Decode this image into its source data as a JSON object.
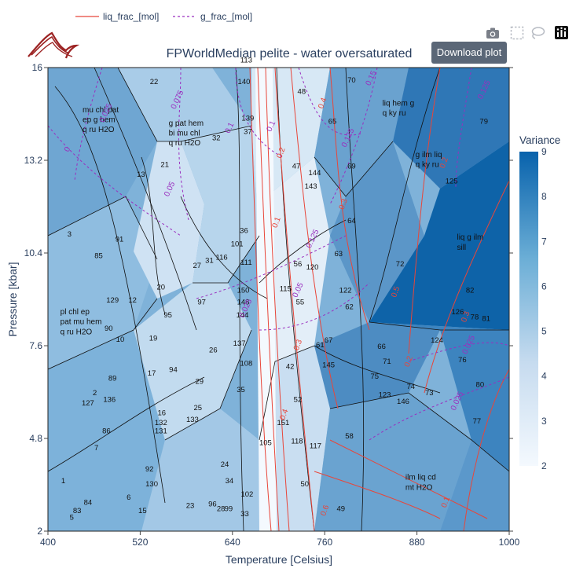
{
  "toolbar": {
    "download_label": "Download plot",
    "icons": [
      "camera-icon",
      "box-select-icon",
      "lasso-icon",
      "plotly-logo-icon"
    ]
  },
  "logo": {
    "icon": "mountain-logo-icon"
  },
  "colors": {
    "accent": "#5b6777",
    "liq": "#e8463a",
    "g": "#9a2fbf",
    "boundary": "#111111"
  },
  "chart_data": {
    "type": "heatmap",
    "title": "FPWorldMedian pelite - water oversaturated",
    "xlabel": "Temperature [Celsius]",
    "ylabel": "Pressure [kbar]",
    "xlim": [
      400,
      1000
    ],
    "ylim": [
      2,
      16
    ],
    "x_ticks": [
      "400",
      "520",
      "640",
      "760",
      "880",
      "1000"
    ],
    "x_tick_values": [
      400,
      520,
      640,
      760,
      880,
      1000
    ],
    "y_ticks": [
      "2",
      "4.8",
      "7.6",
      "10.4",
      "13.2",
      "16"
    ],
    "y_tick_values": [
      2,
      4.8,
      7.6,
      10.4,
      13.2,
      16
    ],
    "legend": {
      "placement": "top-left",
      "entries": [
        {
          "name": "liq_frac_[mol]",
          "style": "solid",
          "color": "#e8463a"
        },
        {
          "name": "g_frac_[mol]",
          "style": "dashed",
          "color": "#9a2fbf"
        }
      ]
    },
    "colorbar": {
      "title": "Variance",
      "min": 2,
      "max": 9,
      "ticks": [
        "2",
        "3",
        "4",
        "5",
        "6",
        "7",
        "8",
        "9"
      ],
      "tick_values": [
        2,
        3,
        4,
        5,
        6,
        7,
        8,
        9
      ]
    },
    "field_labels": [
      {
        "text": "mu chl pat",
        "x": 445,
        "y": 14.65
      },
      {
        "text": "ep g hem",
        "x": 445,
        "y": 14.35
      },
      {
        "text": "q ru H2O",
        "x": 445,
        "y": 14.05
      },
      {
        "text": "g pat hem",
        "x": 557,
        "y": 14.25
      },
      {
        "text": "bi mu chl",
        "x": 557,
        "y": 13.95
      },
      {
        "text": "q ru H2O",
        "x": 557,
        "y": 13.65
      },
      {
        "text": "liq hem g",
        "x": 835,
        "y": 14.85
      },
      {
        "text": "q ky ru",
        "x": 835,
        "y": 14.55
      },
      {
        "text": "g ilm liq",
        "x": 878,
        "y": 13.3
      },
      {
        "text": "q ky ru",
        "x": 878,
        "y": 13.0
      },
      {
        "text": "liq g ilm",
        "x": 932,
        "y": 10.8
      },
      {
        "text": "sill",
        "x": 932,
        "y": 10.5
      },
      {
        "text": "pl chl ep",
        "x": 416,
        "y": 8.55
      },
      {
        "text": "pat mu hem",
        "x": 416,
        "y": 8.25
      },
      {
        "text": "q ru H2O",
        "x": 416,
        "y": 7.95
      },
      {
        "text": "ilm liq cd",
        "x": 865,
        "y": 3.55
      },
      {
        "text": "mt H2O",
        "x": 865,
        "y": 3.25
      }
    ],
    "field_numbers": [
      {
        "text": "22",
        "x": 538,
        "y": 15.5
      },
      {
        "text": "113",
        "x": 658,
        "y": 16.15
      },
      {
        "text": "140",
        "x": 655,
        "y": 15.5
      },
      {
        "text": "48",
        "x": 730,
        "y": 15.2
      },
      {
        "text": "70",
        "x": 795,
        "y": 15.55
      },
      {
        "text": "139",
        "x": 660,
        "y": 14.4
      },
      {
        "text": "37",
        "x": 660,
        "y": 14.0
      },
      {
        "text": "65",
        "x": 770,
        "y": 14.3
      },
      {
        "text": "79",
        "x": 967,
        "y": 14.3
      },
      {
        "text": "32",
        "x": 619,
        "y": 13.8
      },
      {
        "text": "21",
        "x": 552,
        "y": 13.0
      },
      {
        "text": "13",
        "x": 521,
        "y": 12.7
      },
      {
        "text": "47",
        "x": 723,
        "y": 12.95
      },
      {
        "text": "69",
        "x": 795,
        "y": 12.95
      },
      {
        "text": "144",
        "x": 747,
        "y": 12.75
      },
      {
        "text": "143",
        "x": 742,
        "y": 12.35
      },
      {
        "text": "125",
        "x": 925,
        "y": 12.5
      },
      {
        "text": "64",
        "x": 795,
        "y": 11.3
      },
      {
        "text": "3",
        "x": 428,
        "y": 10.9
      },
      {
        "text": "91",
        "x": 493,
        "y": 10.75
      },
      {
        "text": "36",
        "x": 655,
        "y": 11.0
      },
      {
        "text": "101",
        "x": 646,
        "y": 10.6
      },
      {
        "text": "63",
        "x": 778,
        "y": 10.3
      },
      {
        "text": "72",
        "x": 858,
        "y": 10.0
      },
      {
        "text": "85",
        "x": 466,
        "y": 10.25
      },
      {
        "text": "31",
        "x": 610,
        "y": 10.1
      },
      {
        "text": "116",
        "x": 626,
        "y": 10.2
      },
      {
        "text": "111",
        "x": 658,
        "y": 10.05
      },
      {
        "text": "56",
        "x": 725,
        "y": 10.0
      },
      {
        "text": "120",
        "x": 744,
        "y": 9.9
      },
      {
        "text": "27",
        "x": 594,
        "y": 9.95
      },
      {
        "text": "20",
        "x": 547,
        "y": 9.3
      },
      {
        "text": "150",
        "x": 654,
        "y": 9.2
      },
      {
        "text": "115",
        "x": 709,
        "y": 9.25
      },
      {
        "text": "122",
        "x": 787,
        "y": 9.2
      },
      {
        "text": "82",
        "x": 949,
        "y": 9.2
      },
      {
        "text": "129",
        "x": 484,
        "y": 8.9
      },
      {
        "text": "12",
        "x": 510,
        "y": 8.9
      },
      {
        "text": "148",
        "x": 654,
        "y": 8.85
      },
      {
        "text": "55",
        "x": 728,
        "y": 8.85
      },
      {
        "text": "62",
        "x": 792,
        "y": 8.7
      },
      {
        "text": "97",
        "x": 600,
        "y": 8.85
      },
      {
        "text": "95",
        "x": 556,
        "y": 8.45
      },
      {
        "text": "144",
        "x": 653,
        "y": 8.45
      },
      {
        "text": "126",
        "x": 933,
        "y": 8.55
      },
      {
        "text": "78",
        "x": 955,
        "y": 8.4
      },
      {
        "text": "81",
        "x": 970,
        "y": 8.35
      },
      {
        "text": "90",
        "x": 479,
        "y": 8.05
      },
      {
        "text": "10",
        "x": 494,
        "y": 7.72
      },
      {
        "text": "19",
        "x": 537,
        "y": 7.75
      },
      {
        "text": "137",
        "x": 649,
        "y": 7.6
      },
      {
        "text": "124",
        "x": 906,
        "y": 7.7
      },
      {
        "text": "26",
        "x": 615,
        "y": 7.4
      },
      {
        "text": "61",
        "x": 754,
        "y": 7.55
      },
      {
        "text": "67",
        "x": 765,
        "y": 7.7
      },
      {
        "text": "66",
        "x": 834,
        "y": 7.5
      },
      {
        "text": "76",
        "x": 939,
        "y": 7.1
      },
      {
        "text": "108",
        "x": 658,
        "y": 7.0
      },
      {
        "text": "42",
        "x": 715,
        "y": 6.9
      },
      {
        "text": "145",
        "x": 765,
        "y": 6.95
      },
      {
        "text": "71",
        "x": 841,
        "y": 7.05
      },
      {
        "text": "94",
        "x": 563,
        "y": 6.8
      },
      {
        "text": "17",
        "x": 535,
        "y": 6.7
      },
      {
        "text": "89",
        "x": 484,
        "y": 6.55
      },
      {
        "text": "75",
        "x": 825,
        "y": 6.6
      },
      {
        "text": "74",
        "x": 872,
        "y": 6.3
      },
      {
        "text": "80",
        "x": 962,
        "y": 6.35
      },
      {
        "text": "29",
        "x": 597,
        "y": 6.45
      },
      {
        "text": "35",
        "x": 651,
        "y": 6.2
      },
      {
        "text": "2",
        "x": 461,
        "y": 6.1
      },
      {
        "text": "136",
        "x": 480,
        "y": 5.9
      },
      {
        "text": "127",
        "x": 452,
        "y": 5.8
      },
      {
        "text": "52",
        "x": 725,
        "y": 5.9
      },
      {
        "text": "123",
        "x": 838,
        "y": 6.05
      },
      {
        "text": "73",
        "x": 896,
        "y": 6.1
      },
      {
        "text": "146",
        "x": 862,
        "y": 5.85
      },
      {
        "text": "25",
        "x": 595,
        "y": 5.65
      },
      {
        "text": "16",
        "x": 548,
        "y": 5.5
      },
      {
        "text": "133",
        "x": 588,
        "y": 5.3
      },
      {
        "text": "132",
        "x": 547,
        "y": 5.2
      },
      {
        "text": "151",
        "x": 706,
        "y": 5.2
      },
      {
        "text": "77",
        "x": 958,
        "y": 5.25
      },
      {
        "text": "86",
        "x": 476,
        "y": 4.95
      },
      {
        "text": "131",
        "x": 547,
        "y": 4.95
      },
      {
        "text": "58",
        "x": 792,
        "y": 4.8
      },
      {
        "text": "105",
        "x": 683,
        "y": 4.6
      },
      {
        "text": "7",
        "x": 463,
        "y": 4.45
      },
      {
        "text": "118",
        "x": 724,
        "y": 4.65
      },
      {
        "text": "117",
        "x": 748,
        "y": 4.5
      },
      {
        "text": "24",
        "x": 630,
        "y": 3.95
      },
      {
        "text": "92",
        "x": 532,
        "y": 3.8
      },
      {
        "text": "34",
        "x": 636,
        "y": 3.45
      },
      {
        "text": "130",
        "x": 535,
        "y": 3.35
      },
      {
        "text": "1",
        "x": 420,
        "y": 3.45
      },
      {
        "text": "6",
        "x": 505,
        "y": 2.95
      },
      {
        "text": "50",
        "x": 734,
        "y": 3.35
      },
      {
        "text": "84",
        "x": 452,
        "y": 2.8
      },
      {
        "text": "102",
        "x": 659,
        "y": 3.05
      },
      {
        "text": "23",
        "x": 585,
        "y": 2.7
      },
      {
        "text": "96",
        "x": 614,
        "y": 2.75
      },
      {
        "text": "83",
        "x": 438,
        "y": 2.55
      },
      {
        "text": "15",
        "x": 523,
        "y": 2.55
      },
      {
        "text": "28",
        "x": 625,
        "y": 2.6
      },
      {
        "text": "99",
        "x": 635,
        "y": 2.6
      },
      {
        "text": "49",
        "x": 781,
        "y": 2.6
      },
      {
        "text": "5",
        "x": 431,
        "y": 2.35
      },
      {
        "text": "33",
        "x": 656,
        "y": 2.45
      }
    ],
    "liq_contour_labels": [
      {
        "text": "0.4",
        "x": 760,
        "y": 14.9
      },
      {
        "text": "0.2",
        "x": 706,
        "y": 13.4
      },
      {
        "text": "0.3",
        "x": 787,
        "y": 11.85
      },
      {
        "text": "0.1",
        "x": 700,
        "y": 11.3
      },
      {
        "text": "0.5",
        "x": 855,
        "y": 9.2
      },
      {
        "text": "0.3",
        "x": 728,
        "y": 7.6
      },
      {
        "text": "0.2",
        "x": 872,
        "y": 7.1
      },
      {
        "text": "0.4",
        "x": 710,
        "y": 5.5
      },
      {
        "text": "0.1",
        "x": 920,
        "y": 2.85
      },
      {
        "text": "0.6",
        "x": 763,
        "y": 2.6
      },
      {
        "text": "0.2",
        "x": 918,
        "y": 13.1
      },
      {
        "text": "0.3",
        "x": 946,
        "y": 8.45
      }
    ],
    "g_contour_labels": [
      {
        "text": "0.025",
        "x": 478,
        "y": 14.6
      },
      {
        "text": "0.075",
        "x": 571,
        "y": 15.0
      },
      {
        "text": "0.1",
        "x": 639,
        "y": 14.15
      },
      {
        "text": "0.125",
        "x": 793,
        "y": 13.85
      },
      {
        "text": "0.15",
        "x": 823,
        "y": 15.65
      },
      {
        "text": "0.125",
        "x": 970,
        "y": 15.3
      },
      {
        "text": "0.05",
        "x": 561,
        "y": 12.3
      },
      {
        "text": "0",
        "x": 428,
        "y": 13.5
      },
      {
        "text": "0.125",
        "x": 747,
        "y": 10.8
      },
      {
        "text": "0.05",
        "x": 728,
        "y": 9.25
      },
      {
        "text": "0.025",
        "x": 660,
        "y": 8.7
      },
      {
        "text": "0.025",
        "x": 950,
        "y": 7.6
      },
      {
        "text": "0.025",
        "x": 935,
        "y": 5.9
      },
      {
        "text": "0.1",
        "x": 693,
        "y": 14.2
      }
    ]
  }
}
